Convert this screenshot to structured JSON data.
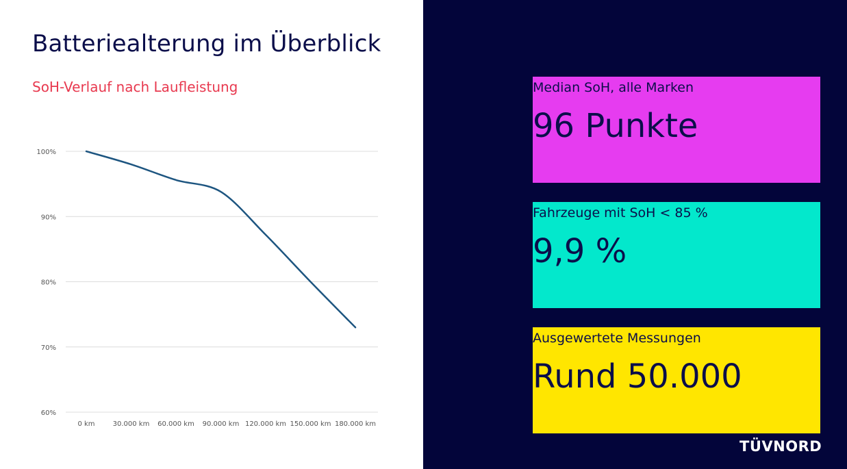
{
  "header": {
    "title": "Batteriealterung im Überblick",
    "subtitle": "SoH-Verlauf nach Laufleistung"
  },
  "chart_data": {
    "type": "line",
    "categories": [
      "0 km",
      "30.000 km",
      "60.000 km",
      "90.000 km",
      "120.000 km",
      "150.000 km",
      "180.000 km"
    ],
    "series": [
      {
        "values": [
          100,
          98,
          95.6,
          93.8,
          87.2,
          80,
          73
        ]
      }
    ],
    "yticks": [
      "100%",
      "90%",
      "80%",
      "70%",
      "60%"
    ],
    "ylim": [
      60,
      100
    ],
    "grid": true,
    "line_color": "#1d5580"
  },
  "kpis": [
    {
      "label": "Median SoH, alle Marken",
      "value": "96 Punkte",
      "color": "#e63cf0"
    },
    {
      "label": "Fahrzeuge mit SoH < 85 %",
      "value": "9,9 %",
      "color": "#03e8cc"
    },
    {
      "label": "Ausgewertete Messungen",
      "value": "Rund 50.000",
      "color": "#ffe600"
    }
  ],
  "brand": {
    "part1": "TÜV",
    "part2": "NORD"
  }
}
